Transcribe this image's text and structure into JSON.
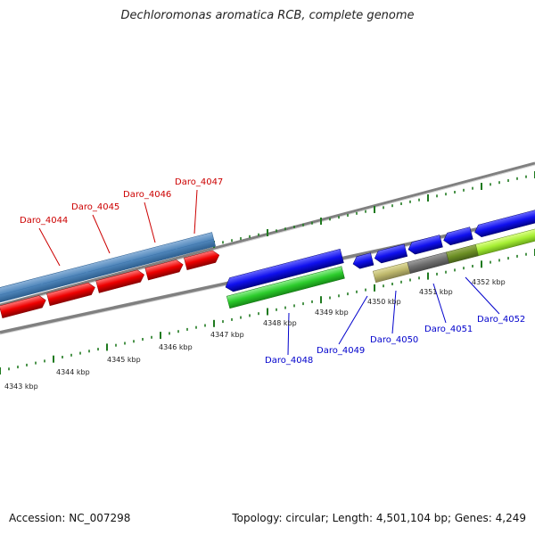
{
  "title": "Dechloromonas aromatica RCB, complete genome",
  "footer": {
    "accession": "Accession: NC_007298",
    "summary": "Topology: circular; Length: 4,501,104 bp; Genes: 4,249"
  },
  "colors": {
    "backbone": "#7d7d7d",
    "ticks": "#1f7a1f",
    "red_label": "#cc0000",
    "blue_label": "#0000cc"
  },
  "kbp_labels": [
    "4343 kbp",
    "4344 kbp",
    "4345 kbp",
    "4346 kbp",
    "4347 kbp",
    "4348 kbp",
    "4349 kbp",
    "4350 kbp",
    "4351 kbp",
    "4352 kbp"
  ],
  "gene_labels_red": [
    "Daro_4044",
    "Daro_4045",
    "Daro_4046",
    "Daro_4047"
  ],
  "gene_labels_blue": [
    "Daro_4048",
    "Daro_4049",
    "Daro_4050",
    "Daro_4051",
    "Daro_4052"
  ]
}
